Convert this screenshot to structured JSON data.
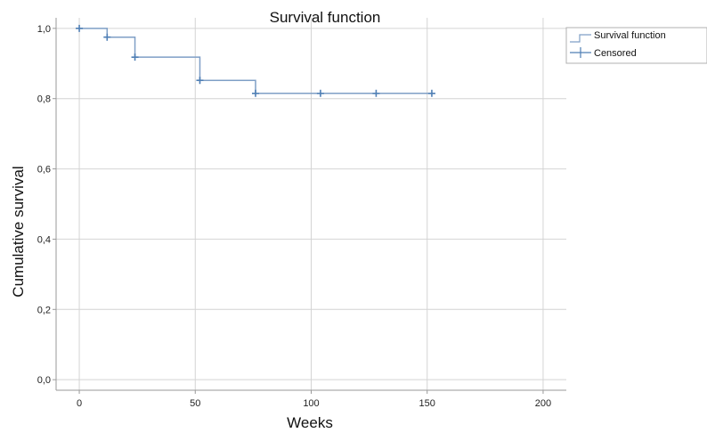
{
  "chart_data": {
    "type": "line",
    "title": "Survival function",
    "xlabel": "Weeks",
    "ylabel": "Cumulative survival",
    "xlim": [
      -10,
      210
    ],
    "ylim": [
      -0.03,
      1.03
    ],
    "x_ticks": [
      0,
      50,
      100,
      150,
      200
    ],
    "x_tick_labels": [
      "0",
      "50",
      "100",
      "150",
      "200"
    ],
    "y_ticks": [
      0.0,
      0.2,
      0.4,
      0.6,
      0.8,
      1.0
    ],
    "y_tick_labels": [
      "0,0",
      "0,2",
      "0,4",
      "0,6",
      "0,8",
      "1,0"
    ],
    "grid": true,
    "legend_position": "top-right",
    "series": [
      {
        "name": "Survival function",
        "step": "post",
        "x": [
          0,
          12,
          24,
          52,
          76,
          152
        ],
        "y": [
          1.0,
          0.975,
          0.918,
          0.852,
          0.815,
          0.815
        ]
      }
    ],
    "censored": {
      "name": "Censored",
      "x": [
        0,
        12,
        24,
        52,
        76,
        104,
        128,
        152
      ],
      "y": [
        1.0,
        0.975,
        0.918,
        0.852,
        0.815,
        0.815,
        0.815,
        0.815
      ]
    },
    "colors": {
      "line": "#7f9fc6",
      "marker": "#4f7fb5",
      "grid": "#d4d4d4",
      "axis": "#9a9a9a"
    }
  }
}
